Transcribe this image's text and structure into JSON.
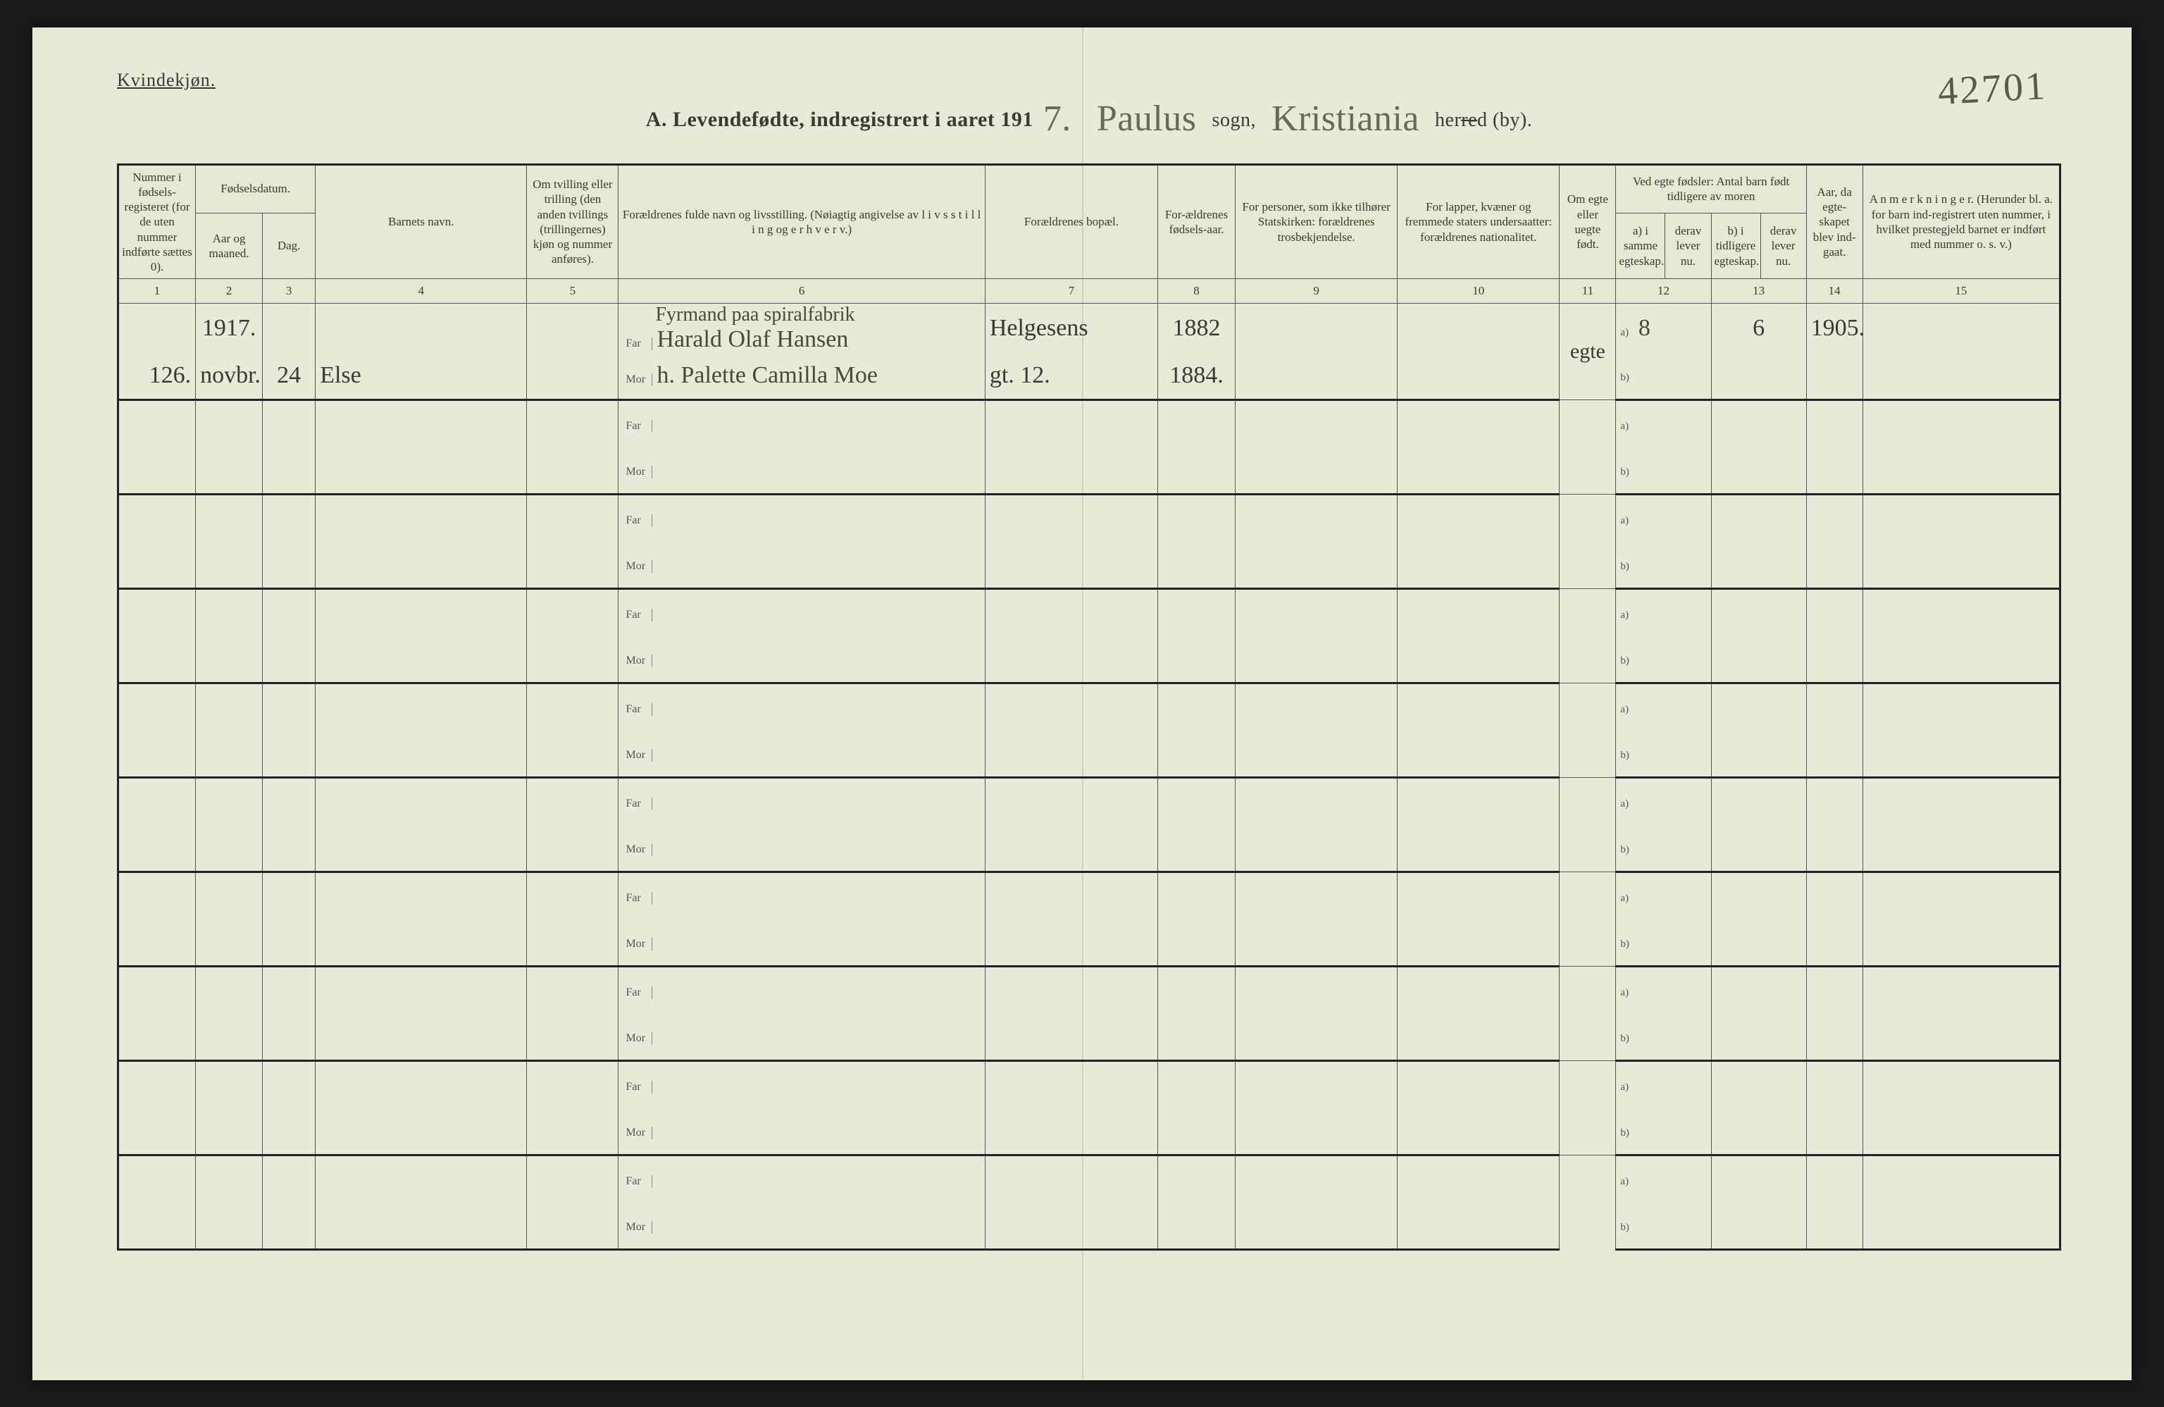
{
  "page": {
    "gender_label": "Kvindekjøn.",
    "form_number": "42701",
    "title_prefix": "A.  Levendefødte, indregistrert i aaret 191",
    "year_suffix": "7.",
    "sogn_value": "Paulus",
    "sogn_label": "sogn,",
    "herred_value": "Kristiania",
    "herred_label_pre": "her",
    "herred_label_strike": "re",
    "herred_label_post": "d (by)."
  },
  "columns": {
    "c1": "Nummer i fødsels-registeret (for de uten nummer indførte sættes 0).",
    "c2_group": "Fødselsdatum.",
    "c2a": "Aar og maaned.",
    "c2b": "Dag.",
    "c3": "Barnets navn.",
    "c4": "Om tvilling eller trilling (den anden tvillings (trillingernes) kjøn og nummer anføres).",
    "c5": "Forældrenes fulde navn og livsstilling.\n(Nøiagtig angivelse av  l i v s s t i l l i n g  og  e r h v e r v.)",
    "c6": "Forældrenes bopæl.",
    "c7": "For-ældrenes fødsels-aar.",
    "c8": "For personer, som ikke tilhører Statskirken:\nforældrenes trosbekjendelse.",
    "c9": "For lapper, kvæner og fremmede staters undersaatter:\nforældrenes nationalitet.",
    "c10": "Om egte eller uegte født.",
    "c11_group": "Ved egte fødsler:\nAntal barn født tidligere av moren",
    "c11a": "a) i samme egteskap.",
    "c11b": "derav lever nu.",
    "c11c": "b) i tidligere egteskap.",
    "c11d": "derav lever nu.",
    "c12": "Aar, da egte-skapet blev ind-gaat.",
    "c13": "A n m e r k n i n g e r.\n(Herunder bl. a. for barn ind-registrert uten nummer, i hvilket prestegjeld barnet er indført med nummer o. s. v.)"
  },
  "colnums": [
    "1",
    "2",
    "3",
    "4",
    "5",
    "6",
    "7",
    "8",
    "9",
    "10",
    "11",
    "12",
    "13",
    "14",
    "15"
  ],
  "parent_labels": {
    "far": "Far",
    "mor": "Mor",
    "a": "a)",
    "b": "b)"
  },
  "entry": {
    "year_header": "1917.",
    "number": "126.",
    "month": "novbr.",
    "day": "24",
    "child_name": "Else",
    "occupation_line": "Fyrmand paa spiralfabrik",
    "father_name": "Harald Olaf Hansen",
    "mother_name": "h. Palette Camilla Moe",
    "father_address": "Helgesens",
    "mother_address": "gt. 12.",
    "father_birth": "1882",
    "mother_birth": "1884.",
    "egte": "egte",
    "prev_a": "8",
    "prev_a_alive": "6",
    "marriage_year": "1905."
  }
}
